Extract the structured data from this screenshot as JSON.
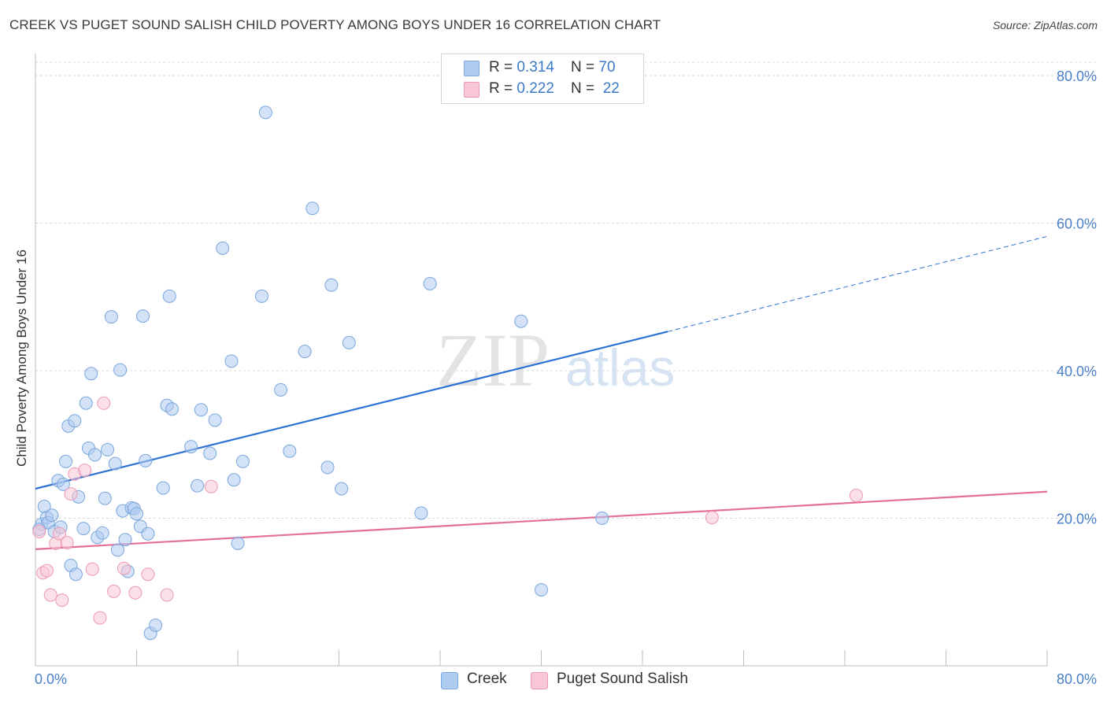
{
  "title": "CREEK VS PUGET SOUND SALISH CHILD POVERTY AMONG BOYS UNDER 16 CORRELATION CHART",
  "source": "Source: ZipAtlas.com",
  "watermark": {
    "zip": "ZIP",
    "atlas": "atlas"
  },
  "colors": {
    "creek_fill": "#aecbf0",
    "creek_stroke": "#7aa7dc",
    "creek_line": "#2d72d2",
    "salish_fill": "#f8c6d6",
    "salish_stroke": "#ec9ab5",
    "salish_line": "#e46f9b",
    "axis_label": "#4a7fc9",
    "grid": "#d8d8d8"
  },
  "legend": {
    "rows": [
      {
        "r_label": "R = ",
        "r_value": "0.314",
        "n_label": "N = ",
        "n_value": "70"
      },
      {
        "r_label": "R = ",
        "r_value": "0.222",
        "n_label": "N = ",
        "n_value": "22"
      }
    ]
  },
  "bottom_legend": [
    {
      "label": "Creek"
    },
    {
      "label": "Puget Sound Salish"
    }
  ],
  "chart_data": {
    "type": "scatter",
    "title": "CREEK VS PUGET SOUND SALISH CHILD POVERTY AMONG BOYS UNDER 16 CORRELATION CHART",
    "xlabel": "",
    "ylabel": "Child Poverty Among Boys Under 16",
    "xlim": [
      0,
      80
    ],
    "ylim": [
      0,
      80
    ],
    "x_tick_labels": [
      "0.0%",
      "80.0%"
    ],
    "y_ticks": [
      20,
      40,
      60,
      80
    ],
    "y_tick_labels": [
      "20.0%",
      "40.0%",
      "60.0%",
      "80.0%"
    ],
    "grid": true,
    "legend_position": "top-center",
    "series": [
      {
        "name": "Creek",
        "r": 0.314,
        "n": 70,
        "trend": {
          "x0": 0,
          "y0": 24.0,
          "x1": 50,
          "y1": 45.3,
          "dashed_to_x": 80,
          "dashed_to_y": 58.2
        },
        "points": [
          [
            0.5,
            19.2
          ],
          [
            0.7,
            21.6
          ],
          [
            0.9,
            20.1
          ],
          [
            1.0,
            19.4
          ],
          [
            1.3,
            20.4
          ],
          [
            1.5,
            18.2
          ],
          [
            1.8,
            25.1
          ],
          [
            2.0,
            18.8
          ],
          [
            2.2,
            24.6
          ],
          [
            2.4,
            27.7
          ],
          [
            2.6,
            32.5
          ],
          [
            2.8,
            13.6
          ],
          [
            3.1,
            33.2
          ],
          [
            3.2,
            12.4
          ],
          [
            3.4,
            22.9
          ],
          [
            3.8,
            18.6
          ],
          [
            4.0,
            35.6
          ],
          [
            4.2,
            29.5
          ],
          [
            4.4,
            39.6
          ],
          [
            4.7,
            28.6
          ],
          [
            4.9,
            17.4
          ],
          [
            5.3,
            18.0
          ],
          [
            5.5,
            22.7
          ],
          [
            5.7,
            29.3
          ],
          [
            6.0,
            47.3
          ],
          [
            6.3,
            27.4
          ],
          [
            6.5,
            15.7
          ],
          [
            6.7,
            40.1
          ],
          [
            6.9,
            21.0
          ],
          [
            7.1,
            17.1
          ],
          [
            7.3,
            12.8
          ],
          [
            7.6,
            21.4
          ],
          [
            7.8,
            21.3
          ],
          [
            8.0,
            20.6
          ],
          [
            8.3,
            18.9
          ],
          [
            8.5,
            47.4
          ],
          [
            8.7,
            27.8
          ],
          [
            8.9,
            17.9
          ],
          [
            9.1,
            4.4
          ],
          [
            9.5,
            5.5
          ],
          [
            10.1,
            24.1
          ],
          [
            10.4,
            35.3
          ],
          [
            10.6,
            50.1
          ],
          [
            10.8,
            34.8
          ],
          [
            12.3,
            29.7
          ],
          [
            12.8,
            24.4
          ],
          [
            13.1,
            34.7
          ],
          [
            13.8,
            28.8
          ],
          [
            14.2,
            33.3
          ],
          [
            14.8,
            56.6
          ],
          [
            15.5,
            41.3
          ],
          [
            15.7,
            25.2
          ],
          [
            16.0,
            16.6
          ],
          [
            16.4,
            27.7
          ],
          [
            17.9,
            50.1
          ],
          [
            18.2,
            75.0
          ],
          [
            19.4,
            37.4
          ],
          [
            20.1,
            29.1
          ],
          [
            21.3,
            42.6
          ],
          [
            21.9,
            62.0
          ],
          [
            23.1,
            26.9
          ],
          [
            23.4,
            51.6
          ],
          [
            24.2,
            24.0
          ],
          [
            24.8,
            43.8
          ],
          [
            30.5,
            20.7
          ],
          [
            31.2,
            51.8
          ],
          [
            38.4,
            46.7
          ],
          [
            40.0,
            10.3
          ],
          [
            44.8,
            20.0
          ],
          [
            0.3,
            18.5
          ]
        ]
      },
      {
        "name": "Puget Sound Salish",
        "r": 0.222,
        "n": 22,
        "trend": {
          "x0": 0,
          "y0": 15.8,
          "x1": 80,
          "y1": 23.6
        },
        "points": [
          [
            0.3,
            18.2
          ],
          [
            0.6,
            12.6
          ],
          [
            0.9,
            12.9
          ],
          [
            1.2,
            9.6
          ],
          [
            1.6,
            16.6
          ],
          [
            1.9,
            17.9
          ],
          [
            2.1,
            8.9
          ],
          [
            2.5,
            16.7
          ],
          [
            2.8,
            23.3
          ],
          [
            3.1,
            26.0
          ],
          [
            3.9,
            26.5
          ],
          [
            4.5,
            13.1
          ],
          [
            5.1,
            6.5
          ],
          [
            5.4,
            35.6
          ],
          [
            6.2,
            10.1
          ],
          [
            7.0,
            13.2
          ],
          [
            7.9,
            9.9
          ],
          [
            8.9,
            12.4
          ],
          [
            10.4,
            9.6
          ],
          [
            13.9,
            24.3
          ],
          [
            53.5,
            20.1
          ],
          [
            64.9,
            23.1
          ]
        ]
      }
    ]
  }
}
